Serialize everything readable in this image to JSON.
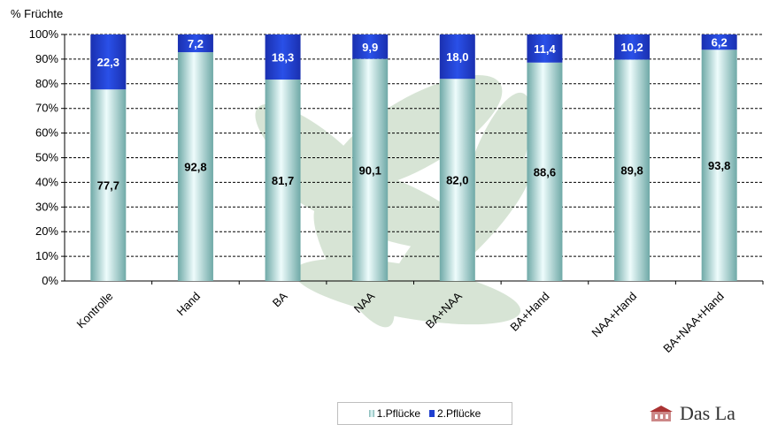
{
  "y_axis_title": "% Früchte",
  "colors": {
    "series1": "#b9e3e2",
    "series2": "#1f3fd0",
    "watermark": "#8fb58a"
  },
  "logo_text": "Das La",
  "chart_data": {
    "type": "bar",
    "stacked": true,
    "categories": [
      "Kontrolle",
      "Hand",
      "BA",
      "NAA",
      "BA+NAA",
      "BA+Hand",
      "NAA+Hand",
      "BA+NAA+Hand"
    ],
    "series": [
      {
        "name": "1.Pflücke",
        "values": [
          77.7,
          92.8,
          81.7,
          90.1,
          82.0,
          88.6,
          89.8,
          93.8
        ],
        "labels": [
          "77,7",
          "92,8",
          "81,7",
          "90,1",
          "82,0",
          "88,6",
          "89,8",
          "93,8"
        ]
      },
      {
        "name": "2.Pflücke",
        "values": [
          22.3,
          7.2,
          18.3,
          9.9,
          18.0,
          11.4,
          10.2,
          6.2
        ],
        "labels": [
          "22,3",
          "7,2",
          "18,3",
          "9,9",
          "18,0",
          "11,4",
          "10,2",
          "6,2"
        ]
      }
    ],
    "ylim": [
      0,
      100
    ],
    "yticks": [
      "0%",
      "10%",
      "20%",
      "30%",
      "40%",
      "50%",
      "60%",
      "70%",
      "80%",
      "90%",
      "100%"
    ],
    "grid": true,
    "legend_position": "bottom"
  }
}
